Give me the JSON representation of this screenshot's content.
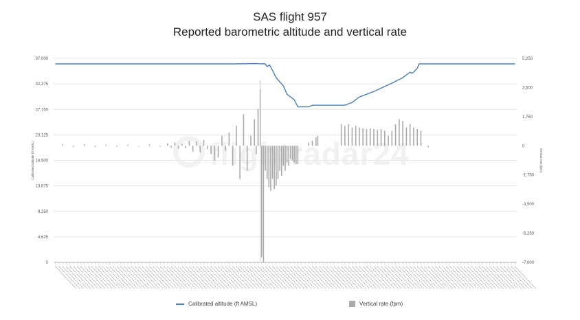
{
  "title": {
    "line1": "SAS flight 957",
    "line2": "Reported barometric altitude and vertical rate"
  },
  "watermark": "flightradar24",
  "chart_data": {
    "type": "line+bar",
    "left_axis": {
      "label": "Calibrated altitude (ft AMSL)",
      "ticks": [
        "37,000",
        "32,375",
        "27,750",
        "23,125",
        "18,500",
        "13,875",
        "9,250",
        "4,625",
        "0"
      ],
      "range": [
        0,
        37000
      ]
    },
    "right_axis": {
      "label": "Vertical rate (fpm)",
      "ticks": [
        "5,250",
        "3,500",
        "1,750",
        "0",
        "-1,750",
        "-3,500",
        "-5,250",
        "-7,000"
      ],
      "range": [
        -7000,
        5250
      ]
    },
    "x_axis": {
      "note": "dense timestamp labels, illegible",
      "count": 128
    },
    "grid": true,
    "legend_position": "bottom",
    "series": [
      {
        "name": "Calibrated altitude (ft AMSL)",
        "kind": "line",
        "color": "#4a7ebb",
        "points": [
          [
            0,
            36000
          ],
          [
            25,
            36000
          ],
          [
            50,
            36000
          ],
          [
            55,
            36050
          ],
          [
            58,
            36000
          ],
          [
            58.5,
            35500
          ],
          [
            59.2,
            35800
          ],
          [
            60,
            34800
          ],
          [
            61,
            33500
          ],
          [
            63,
            32000
          ],
          [
            64,
            30500
          ],
          [
            66,
            29500
          ],
          [
            67,
            28200
          ],
          [
            70,
            28200
          ],
          [
            71,
            28500
          ],
          [
            80,
            28500
          ],
          [
            82,
            29000
          ],
          [
            84,
            30000
          ],
          [
            88,
            31000
          ],
          [
            93,
            32500
          ],
          [
            94.5,
            33000
          ],
          [
            96,
            33500
          ],
          [
            98,
            34500
          ],
          [
            98.5,
            34300
          ],
          [
            99,
            34500
          ],
          [
            100,
            35200
          ],
          [
            100.5,
            36000
          ],
          [
            103,
            36000
          ],
          [
            127,
            36000
          ]
        ]
      },
      {
        "name": "Vertical rate (fpm)",
        "kind": "bar",
        "color": "#aaaaaa",
        "points": [
          [
            2,
            80
          ],
          [
            5,
            -60
          ],
          [
            8,
            90
          ],
          [
            11,
            -70
          ],
          [
            14,
            60
          ],
          [
            17,
            -50
          ],
          [
            20,
            70
          ],
          [
            23,
            -40
          ],
          [
            26,
            90
          ],
          [
            29,
            -60
          ],
          [
            31,
            150
          ],
          [
            32,
            -120
          ],
          [
            33,
            200
          ],
          [
            34,
            -180
          ],
          [
            35,
            120
          ],
          [
            36,
            -150
          ],
          [
            37,
            300
          ],
          [
            38,
            -350
          ],
          [
            39,
            250
          ],
          [
            40,
            -400
          ],
          [
            41,
            350
          ],
          [
            42,
            -200
          ],
          [
            43,
            -500
          ],
          [
            44,
            -900
          ],
          [
            45,
            -700
          ],
          [
            46,
            600
          ],
          [
            47,
            -300
          ],
          [
            48,
            800
          ],
          [
            49,
            -1200
          ],
          [
            50,
            1200
          ],
          [
            51,
            -2000
          ],
          [
            52,
            1900
          ],
          [
            53,
            -1500
          ],
          [
            54,
            600
          ],
          [
            55,
            1600
          ],
          [
            55.5,
            -500
          ],
          [
            56,
            2200
          ],
          [
            56.6,
            3400
          ],
          [
            57,
            -6700
          ],
          [
            57.5,
            -7000
          ],
          [
            58,
            -1500
          ],
          [
            58.5,
            -2000
          ],
          [
            59,
            -2500
          ],
          [
            59.5,
            -2700
          ],
          [
            60,
            -2000
          ],
          [
            60.5,
            -2600
          ],
          [
            61,
            -2400
          ],
          [
            61.5,
            -2000
          ],
          [
            62,
            -1500
          ],
          [
            62.5,
            -1800
          ],
          [
            63,
            -1200
          ],
          [
            63.5,
            -1500
          ],
          [
            64,
            -1000
          ],
          [
            64.5,
            -1200
          ],
          [
            65,
            -800
          ],
          [
            65.5,
            -900
          ],
          [
            66,
            -1000
          ],
          [
            66.5,
            -1100
          ],
          [
            67,
            -1100
          ],
          [
            70,
            200
          ],
          [
            71,
            300
          ],
          [
            72,
            500
          ],
          [
            72.5,
            600
          ],
          [
            79,
            1300
          ],
          [
            80,
            1200
          ],
          [
            81,
            1300
          ],
          [
            82,
            1100
          ],
          [
            83,
            1200
          ],
          [
            84,
            1100
          ],
          [
            85,
            1050
          ],
          [
            86,
            1000
          ],
          [
            87,
            1050
          ],
          [
            88,
            1000
          ],
          [
            89,
            950
          ],
          [
            90,
            1000
          ],
          [
            91,
            900
          ],
          [
            92,
            600
          ],
          [
            93,
            900
          ],
          [
            94,
            1300
          ],
          [
            95,
            1600
          ],
          [
            96,
            1500
          ],
          [
            97,
            1100
          ],
          [
            98,
            1300
          ],
          [
            99,
            1100
          ],
          [
            100,
            1000
          ],
          [
            101,
            900
          ],
          [
            103,
            -100
          ]
        ]
      }
    ]
  }
}
